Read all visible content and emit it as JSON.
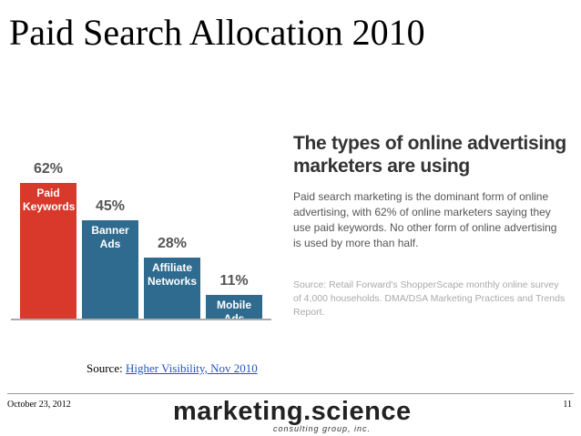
{
  "slide": {
    "title": "Paid Search Allocation 2010",
    "source_prefix": "Source:",
    "source_link": "Higher Visibility, Nov 2010",
    "date": "October 23, 2012",
    "page": "11",
    "logo": "marketing.science",
    "logo_sub": "consulting group, inc."
  },
  "chart_data": {
    "type": "bar",
    "title": "The types of online advertising marketers are using",
    "subtitle": "Paid search marketing is the dominant form of online advertising, with 62% of online marketers saying they use paid keywords. No other form of online advertising is used by more than half.",
    "annotation": "Source: Retail Forward's ShopperScape monthly online survey of 4,000 households. DMA/DSA Marketing Practices and Trends Report.",
    "categories": [
      "Paid Keywords",
      "Banner Ads",
      "Affiliate Networks",
      "Mobile Ads"
    ],
    "values": [
      62,
      45,
      28,
      11
    ],
    "value_labels": [
      "62%",
      "45%",
      "28%",
      "11%"
    ],
    "colors": [
      "#d8392b",
      "#2f6b8e",
      "#2f6b8e",
      "#2f6b8e"
    ]
  }
}
